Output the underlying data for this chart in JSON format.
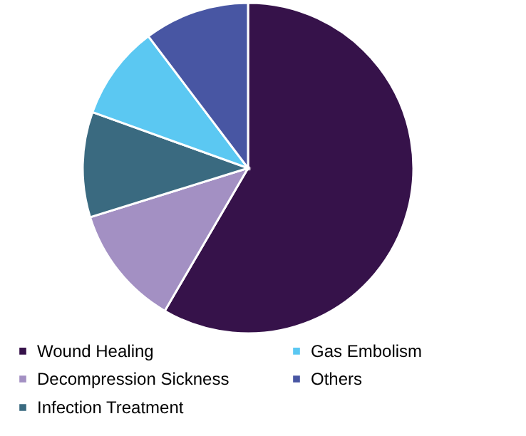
{
  "chart_data": {
    "type": "pie",
    "categories": [
      "Wound Healing",
      "Decompression Sickness",
      "Infection Treatment",
      "Gas Embolism",
      "Others"
    ],
    "values": [
      58.4,
      11.8,
      10.3,
      9.2,
      10.3
    ],
    "colors": [
      "#36124a",
      "#a390c3",
      "#3a6a80",
      "#5bc8f2",
      "#4856a3"
    ],
    "legend": "bottom"
  }
}
